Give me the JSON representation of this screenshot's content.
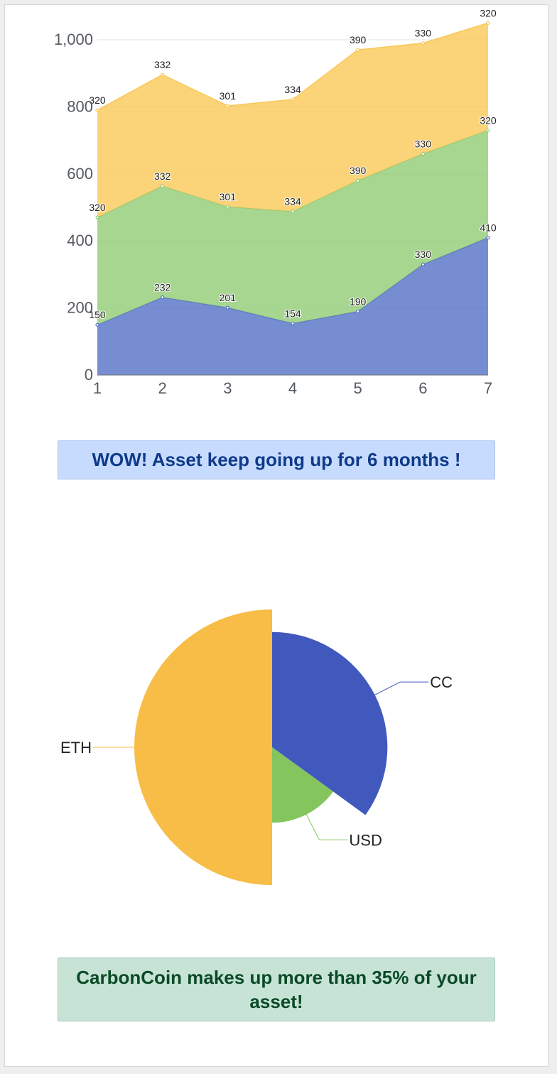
{
  "chart_data": [
    {
      "type": "area",
      "stacked": true,
      "x": [
        1,
        2,
        3,
        4,
        5,
        6,
        7
      ],
      "ylim": [
        0,
        1000
      ],
      "yticks": [
        0,
        200,
        400,
        600,
        800,
        1000
      ],
      "ytick_labels": [
        "0",
        "200",
        "400",
        "600",
        "800",
        "1,000"
      ],
      "grid": true,
      "series": [
        {
          "values": [
            150,
            232,
            201,
            154,
            190,
            330,
            410
          ],
          "color": "#5470c6"
        },
        {
          "values": [
            320,
            332,
            301,
            334,
            390,
            330,
            320
          ],
          "color": "#91cc75"
        },
        {
          "values": [
            320,
            332,
            301,
            334,
            390,
            330,
            320
          ],
          "color": "#fac858"
        }
      ]
    },
    {
      "type": "pie",
      "rose": true,
      "slices": [
        {
          "label": "CC",
          "value": 35,
          "color": "#4159bd"
        },
        {
          "label": "USD",
          "value": 15,
          "color": "#85c55e"
        },
        {
          "label": "ETH",
          "value": 50,
          "color": "#f8bd47"
        }
      ]
    }
  ],
  "messages": {
    "trend": "WOW! Asset keep going up for 6 months !",
    "share": "CarbonCoin makes up more than 35% of your asset!"
  }
}
